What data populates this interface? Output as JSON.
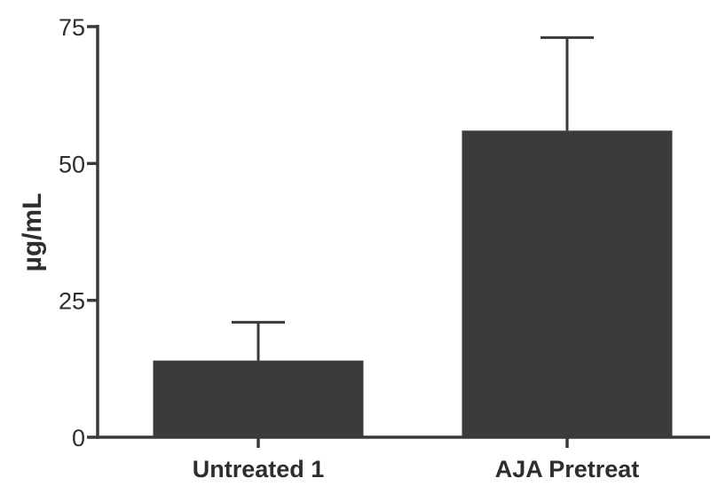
{
  "chart_data": {
    "type": "bar",
    "categories": [
      "Untreated 1",
      "AJA Pretreat"
    ],
    "values": [
      14,
      56
    ],
    "error_plus": [
      7,
      17
    ],
    "ylabel": "µg/mL",
    "xlabel": "",
    "ylim": [
      0,
      75
    ],
    "yticks": [
      0,
      25,
      50,
      75
    ],
    "ytick_labels": [
      "0",
      "25",
      "50",
      "75"
    ],
    "grid": false,
    "bar_color": "#3b3b3b"
  }
}
